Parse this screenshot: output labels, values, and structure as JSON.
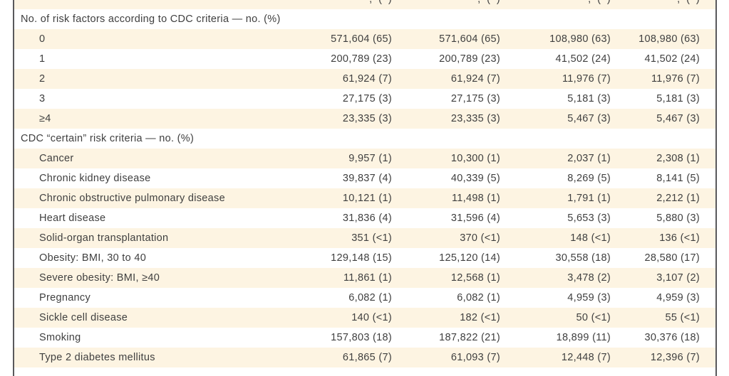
{
  "colors": {
    "stripe_cream": "#fdf4e2",
    "row_white": "#ffffff",
    "border_rule": "#59595c",
    "text": "#3f3f3f"
  },
  "table": {
    "top_clipped_row": {
      "clipped": true,
      "fragments": [
        ",  (  )",
        ",  (  )",
        ",  (  )",
        ",  (  )"
      ]
    },
    "sections": [
      {
        "header": "No. of risk factors according to CDC criteria — no. (%)",
        "rows": [
          {
            "label": "0",
            "values": [
              "571,604 (65)",
              "571,604 (65)",
              "108,980 (63)",
              "108,980 (63)"
            ]
          },
          {
            "label": "1",
            "values": [
              "200,789 (23)",
              "200,789 (23)",
              "41,502 (24)",
              "41,502 (24)"
            ]
          },
          {
            "label": "2",
            "values": [
              "61,924 (7)",
              "61,924 (7)",
              "11,976 (7)",
              "11,976 (7)"
            ]
          },
          {
            "label": "3",
            "values": [
              "27,175 (3)",
              "27,175 (3)",
              "5,181 (3)",
              "5,181 (3)"
            ]
          },
          {
            "label": "≥4",
            "values": [
              "23,335 (3)",
              "23,335 (3)",
              "5,467 (3)",
              "5,467 (3)"
            ]
          }
        ]
      },
      {
        "header": "CDC “certain” risk criteria — no. (%)",
        "rows": [
          {
            "label": "Cancer",
            "values": [
              "9,957 (1)",
              "10,300 (1)",
              "2,037 (1)",
              "2,308 (1)"
            ]
          },
          {
            "label": "Chronic kidney disease",
            "values": [
              "39,837 (4)",
              "40,339 (5)",
              "8,269 (5)",
              "8,141 (5)"
            ]
          },
          {
            "label": "Chronic obstructive pulmonary disease",
            "values": [
              "10,121 (1)",
              "11,498 (1)",
              "1,791 (1)",
              "2,212 (1)"
            ]
          },
          {
            "label": "Heart disease",
            "values": [
              "31,836 (4)",
              "31,596 (4)",
              "5,653 (3)",
              "5,880 (3)"
            ]
          },
          {
            "label": "Solid-organ transplantation",
            "values": [
              "351 (<1)",
              "370 (<1)",
              "148 (<1)",
              "136 (<1)"
            ]
          },
          {
            "label": "Obesity: BMI, 30 to 40",
            "values": [
              "129,148 (15)",
              "125,120 (14)",
              "30,558 (18)",
              "28,580 (17)"
            ]
          },
          {
            "label": "Severe obesity: BMI, ≥40",
            "values": [
              "11,861 (1)",
              "12,568 (1)",
              "3,478 (2)",
              "3,107 (2)"
            ]
          },
          {
            "label": "Pregnancy",
            "values": [
              "6,082 (1)",
              "6,082 (1)",
              "4,959 (3)",
              "4,959 (3)"
            ]
          },
          {
            "label": "Sickle cell disease",
            "values": [
              "140 (<1)",
              "182 (<1)",
              "50 (<1)",
              "55 (<1)"
            ]
          },
          {
            "label": "Smoking",
            "values": [
              "157,803 (18)",
              "187,822 (21)",
              "18,899 (11)",
              "30,376 (18)"
            ]
          },
          {
            "label": "Type 2 diabetes mellitus",
            "values": [
              "61,865 (7)",
              "61,093 (7)",
              "12,448 (7)",
              "12,396 (7)"
            ]
          }
        ]
      }
    ]
  }
}
